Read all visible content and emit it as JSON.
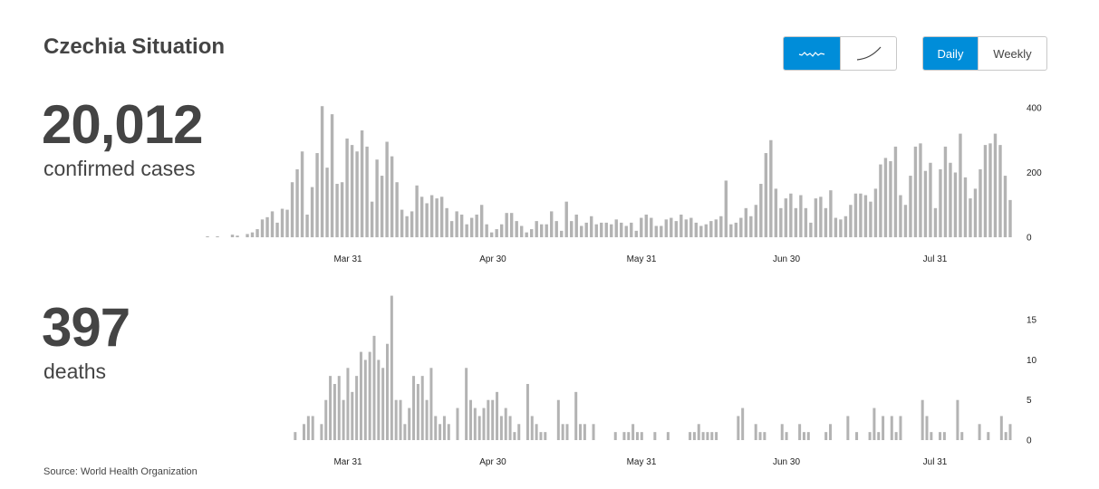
{
  "header": {
    "title": "Czechia Situation",
    "scale_toggle": {
      "options": [
        "linear-scale-icon",
        "log-scale-icon"
      ],
      "selected": 0
    },
    "period_toggle": {
      "options": [
        "Daily",
        "Weekly"
      ],
      "selected": "Daily"
    },
    "accent_color": "#008dd9"
  },
  "cases": {
    "total": "20,012",
    "label": "confirmed cases"
  },
  "deaths": {
    "total": "397",
    "label": "deaths"
  },
  "source": "Source: World Health Organization",
  "chart_data": [
    {
      "type": "bar",
      "series_key": "cases",
      "x_tick_labels": [
        "Mar 31",
        "Apr 30",
        "May 31",
        "Jun 30",
        "Jul 31"
      ],
      "y_tick_labels": [
        "0",
        "200",
        "400"
      ],
      "ylim": [
        0,
        400
      ],
      "bar_color": "#b3b3b3",
      "values": [
        1,
        0,
        2,
        0,
        0,
        8,
        5,
        0,
        10,
        15,
        25,
        55,
        62,
        80,
        45,
        88,
        85,
        170,
        210,
        265,
        70,
        155,
        260,
        405,
        215,
        380,
        165,
        170,
        305,
        285,
        265,
        330,
        280,
        110,
        240,
        190,
        295,
        250,
        170,
        85,
        65,
        80,
        160,
        125,
        105,
        130,
        120,
        125,
        90,
        50,
        80,
        70,
        40,
        60,
        70,
        100,
        40,
        15,
        25,
        40,
        75,
        75,
        50,
        35,
        15,
        25,
        50,
        40,
        40,
        80,
        50,
        20,
        110,
        50,
        70,
        35,
        45,
        65,
        40,
        45,
        45,
        40,
        55,
        45,
        35,
        45,
        20,
        60,
        70,
        60,
        35,
        35,
        55,
        60,
        50,
        70,
        55,
        60,
        45,
        35,
        40,
        50,
        55,
        65,
        175,
        40,
        45,
        60,
        90,
        65,
        100,
        165,
        260,
        300,
        150,
        90,
        120,
        135,
        90,
        130,
        90,
        45,
        120,
        125,
        90,
        145,
        60,
        55,
        65,
        100,
        135,
        135,
        130,
        110,
        150,
        225,
        245,
        235,
        280,
        130,
        100,
        190,
        280,
        290,
        205,
        230,
        90,
        210,
        280,
        230,
        200,
        320,
        185,
        120,
        150,
        210,
        285,
        290,
        320,
        285,
        190,
        115
      ]
    },
    {
      "type": "bar",
      "series_key": "deaths",
      "x_tick_labels": [
        "Mar 31",
        "Apr 30",
        "May 31",
        "Jun 30",
        "Jul 31"
      ],
      "y_tick_labels": [
        "0",
        "5",
        "10",
        "15"
      ],
      "ylim": [
        0,
        17.5
      ],
      "bar_color": "#b3b3b3",
      "values": [
        0,
        0,
        0,
        0,
        0,
        0,
        0,
        0,
        0,
        0,
        0,
        0,
        0,
        0,
        0,
        0,
        0,
        0,
        0,
        0,
        1,
        0,
        2,
        3,
        3,
        0,
        2,
        5,
        8,
        7,
        8,
        5,
        9,
        6,
        8,
        11,
        10,
        11,
        13,
        10,
        9,
        12,
        18,
        5,
        5,
        2,
        4,
        8,
        7,
        8,
        5,
        9,
        3,
        2,
        3,
        2,
        0,
        4,
        0,
        9,
        5,
        4,
        3,
        4,
        5,
        5,
        6,
        3,
        4,
        3,
        1,
        2,
        0,
        7,
        3,
        2,
        1,
        1,
        0,
        0,
        5,
        2,
        2,
        0,
        6,
        2,
        2,
        0,
        2,
        0,
        0,
        0,
        0,
        1,
        0,
        1,
        1,
        2,
        1,
        1,
        0,
        0,
        1,
        0,
        0,
        1,
        0,
        0,
        0,
        0,
        1,
        1,
        2,
        1,
        1,
        1,
        1,
        0,
        0,
        0,
        0,
        3,
        4,
        0,
        0,
        2,
        1,
        1,
        0,
        0,
        0,
        2,
        1,
        0,
        0,
        2,
        1,
        1,
        0,
        0,
        0,
        1,
        2,
        0,
        0,
        0,
        3,
        0,
        1,
        0,
        0,
        1,
        4,
        1,
        3,
        0,
        3,
        1,
        3,
        0,
        0,
        0,
        0,
        5,
        3,
        1,
        0,
        1,
        1,
        0,
        0,
        5,
        1,
        0,
        0,
        0,
        2,
        0,
        1,
        0,
        0,
        3,
        1,
        2
      ]
    }
  ]
}
